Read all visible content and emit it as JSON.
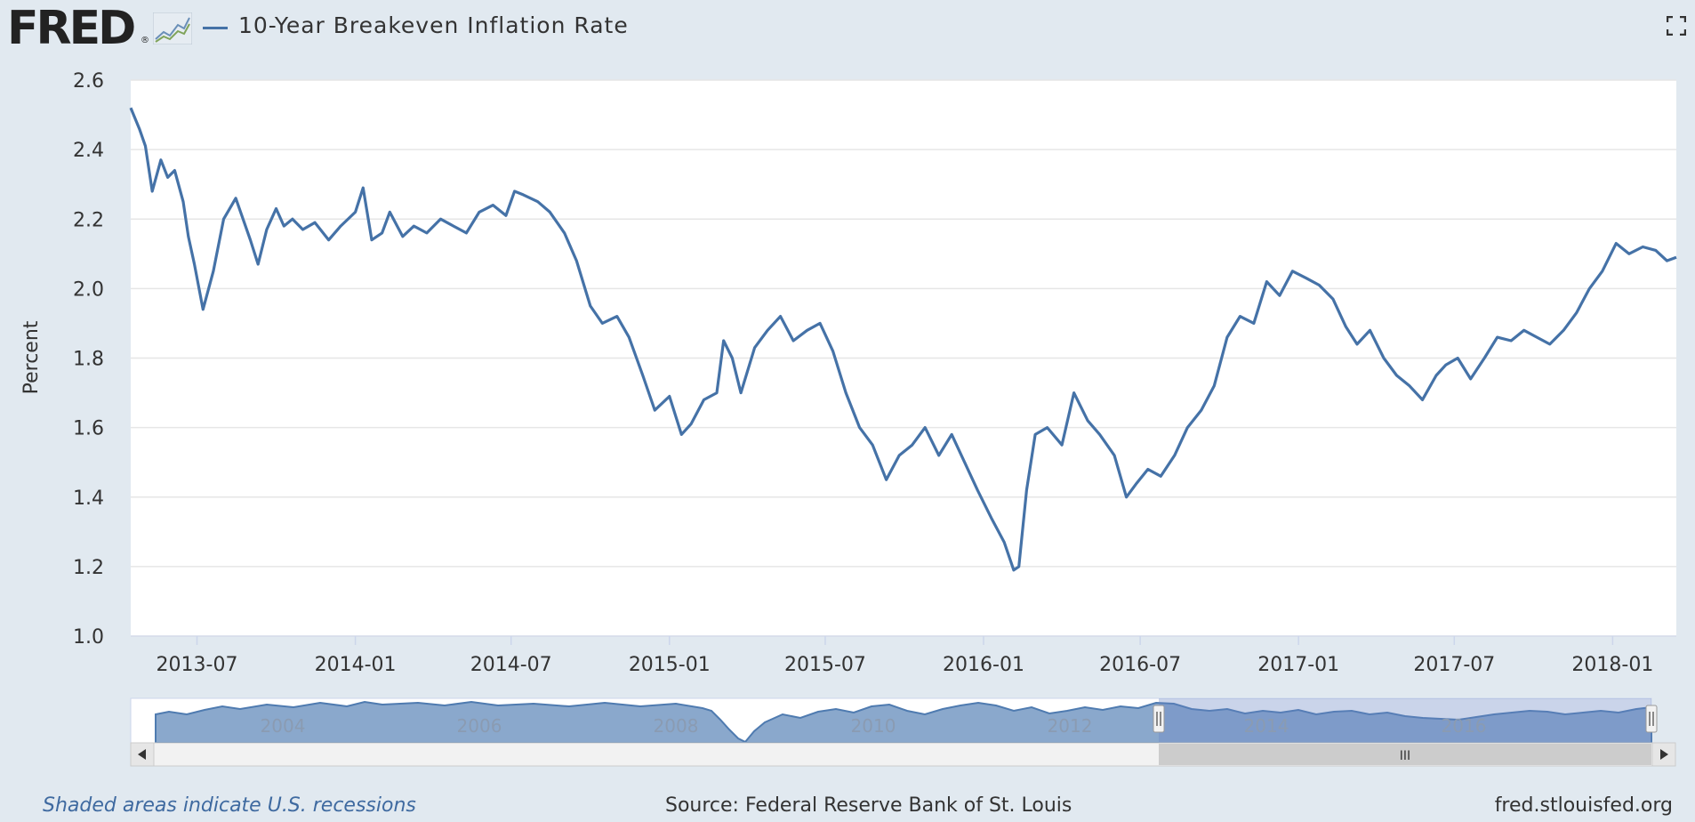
{
  "header": {
    "logo_text": "FRED",
    "logo_reg": "®",
    "series_title": "10-Year Breakeven Inflation Rate"
  },
  "footer": {
    "recessions_note": "Shaded areas indicate U.S. recessions",
    "source": "Source: Federal Reserve Bank of St. Louis",
    "site": "fred.stlouisfed.org"
  },
  "navigator": {
    "years": [
      "2004",
      "2006",
      "2008",
      "2010",
      "2012",
      "2014",
      "2016"
    ],
    "scroll_grip": "III"
  },
  "colors": {
    "series": "#4572a7",
    "background": "#e1e9f0",
    "plot_bg": "#ffffff"
  },
  "chart_data": {
    "type": "line",
    "xlabel": "",
    "ylabel": "Percent",
    "ylim": [
      1.0,
      2.6
    ],
    "yticks": [
      "1.0",
      "1.2",
      "1.4",
      "1.6",
      "1.8",
      "2.0",
      "2.2",
      "2.4",
      "2.6"
    ],
    "xlim": [
      "2013-04-15",
      "2018-03-16"
    ],
    "xticks": [
      "2013-07",
      "2014-01",
      "2014-07",
      "2015-01",
      "2015-07",
      "2016-01",
      "2016-07",
      "2017-01",
      "2017-07",
      "2018-01"
    ],
    "grid": true,
    "series": [
      {
        "name": "10-Year Breakeven Inflation Rate",
        "x": [
          "2013-04-15",
          "2013-04-25",
          "2013-05-02",
          "2013-05-10",
          "2013-05-20",
          "2013-05-28",
          "2013-06-05",
          "2013-06-15",
          "2013-06-21",
          "2013-06-28",
          "2013-07-08",
          "2013-07-20",
          "2013-08-01",
          "2013-08-15",
          "2013-09-01",
          "2013-09-10",
          "2013-09-20",
          "2013-10-01",
          "2013-10-10",
          "2013-10-20",
          "2013-11-01",
          "2013-11-15",
          "2013-12-01",
          "2013-12-15",
          "2014-01-01",
          "2014-01-10",
          "2014-01-20",
          "2014-02-01",
          "2014-02-10",
          "2014-02-25",
          "2014-03-10",
          "2014-03-25",
          "2014-04-10",
          "2014-04-25",
          "2014-05-10",
          "2014-05-25",
          "2014-06-10",
          "2014-06-25",
          "2014-07-05",
          "2014-07-15",
          "2014-08-01",
          "2014-08-15",
          "2014-09-01",
          "2014-09-15",
          "2014-10-01",
          "2014-10-15",
          "2014-11-01",
          "2014-11-15",
          "2014-12-01",
          "2014-12-15",
          "2015-01-01",
          "2015-01-15",
          "2015-01-26",
          "2015-02-10",
          "2015-02-25",
          "2015-03-05",
          "2015-03-15",
          "2015-03-25",
          "2015-04-10",
          "2015-04-25",
          "2015-05-10",
          "2015-05-25",
          "2015-06-10",
          "2015-06-25",
          "2015-07-10",
          "2015-07-25",
          "2015-08-10",
          "2015-08-25",
          "2015-09-10",
          "2015-09-25",
          "2015-10-10",
          "2015-10-25",
          "2015-11-10",
          "2015-11-25",
          "2015-12-10",
          "2015-12-25",
          "2016-01-10",
          "2016-01-25",
          "2016-02-05",
          "2016-02-11",
          "2016-02-20",
          "2016-03-01",
          "2016-03-15",
          "2016-04-01",
          "2016-04-15",
          "2016-05-01",
          "2016-05-15",
          "2016-06-01",
          "2016-06-15",
          "2016-06-27",
          "2016-07-10",
          "2016-07-25",
          "2016-08-10",
          "2016-08-25",
          "2016-09-10",
          "2016-09-25",
          "2016-10-10",
          "2016-10-25",
          "2016-11-10",
          "2016-11-25",
          "2016-12-10",
          "2016-12-25",
          "2017-01-10",
          "2017-01-25",
          "2017-02-10",
          "2017-02-25",
          "2017-03-10",
          "2017-03-25",
          "2017-04-10",
          "2017-04-25",
          "2017-05-10",
          "2017-05-25",
          "2017-06-10",
          "2017-06-21",
          "2017-07-05",
          "2017-07-20",
          "2017-08-05",
          "2017-08-20",
          "2017-09-05",
          "2017-09-20",
          "2017-10-05",
          "2017-10-20",
          "2017-11-05",
          "2017-11-20",
          "2017-12-05",
          "2017-12-20",
          "2018-01-05",
          "2018-01-20",
          "2018-02-05",
          "2018-02-20",
          "2018-03-05",
          "2018-03-16"
        ],
        "values": [
          2.52,
          2.46,
          2.41,
          2.28,
          2.37,
          2.32,
          2.34,
          2.25,
          2.15,
          2.07,
          1.94,
          2.05,
          2.2,
          2.26,
          2.14,
          2.07,
          2.17,
          2.23,
          2.18,
          2.2,
          2.17,
          2.19,
          2.14,
          2.18,
          2.22,
          2.29,
          2.14,
          2.16,
          2.22,
          2.15,
          2.18,
          2.16,
          2.2,
          2.18,
          2.16,
          2.22,
          2.24,
          2.21,
          2.28,
          2.27,
          2.25,
          2.22,
          2.16,
          2.08,
          1.95,
          1.9,
          1.92,
          1.86,
          1.75,
          1.65,
          1.69,
          1.58,
          1.61,
          1.68,
          1.7,
          1.85,
          1.8,
          1.7,
          1.83,
          1.88,
          1.92,
          1.85,
          1.88,
          1.9,
          1.82,
          1.7,
          1.6,
          1.55,
          1.45,
          1.52,
          1.55,
          1.6,
          1.52,
          1.58,
          1.5,
          1.42,
          1.34,
          1.27,
          1.19,
          1.2,
          1.42,
          1.58,
          1.6,
          1.55,
          1.7,
          1.62,
          1.58,
          1.52,
          1.4,
          1.44,
          1.48,
          1.46,
          1.52,
          1.6,
          1.65,
          1.72,
          1.86,
          1.92,
          1.9,
          2.02,
          1.98,
          2.05,
          2.03,
          2.01,
          1.97,
          1.89,
          1.84,
          1.88,
          1.8,
          1.75,
          1.72,
          1.68,
          1.75,
          1.78,
          1.8,
          1.74,
          1.8,
          1.86,
          1.85,
          1.88,
          1.86,
          1.84,
          1.88,
          1.93,
          2.0,
          2.05,
          2.13,
          2.1,
          2.12,
          2.11,
          2.08,
          2.09
        ]
      }
    ]
  }
}
